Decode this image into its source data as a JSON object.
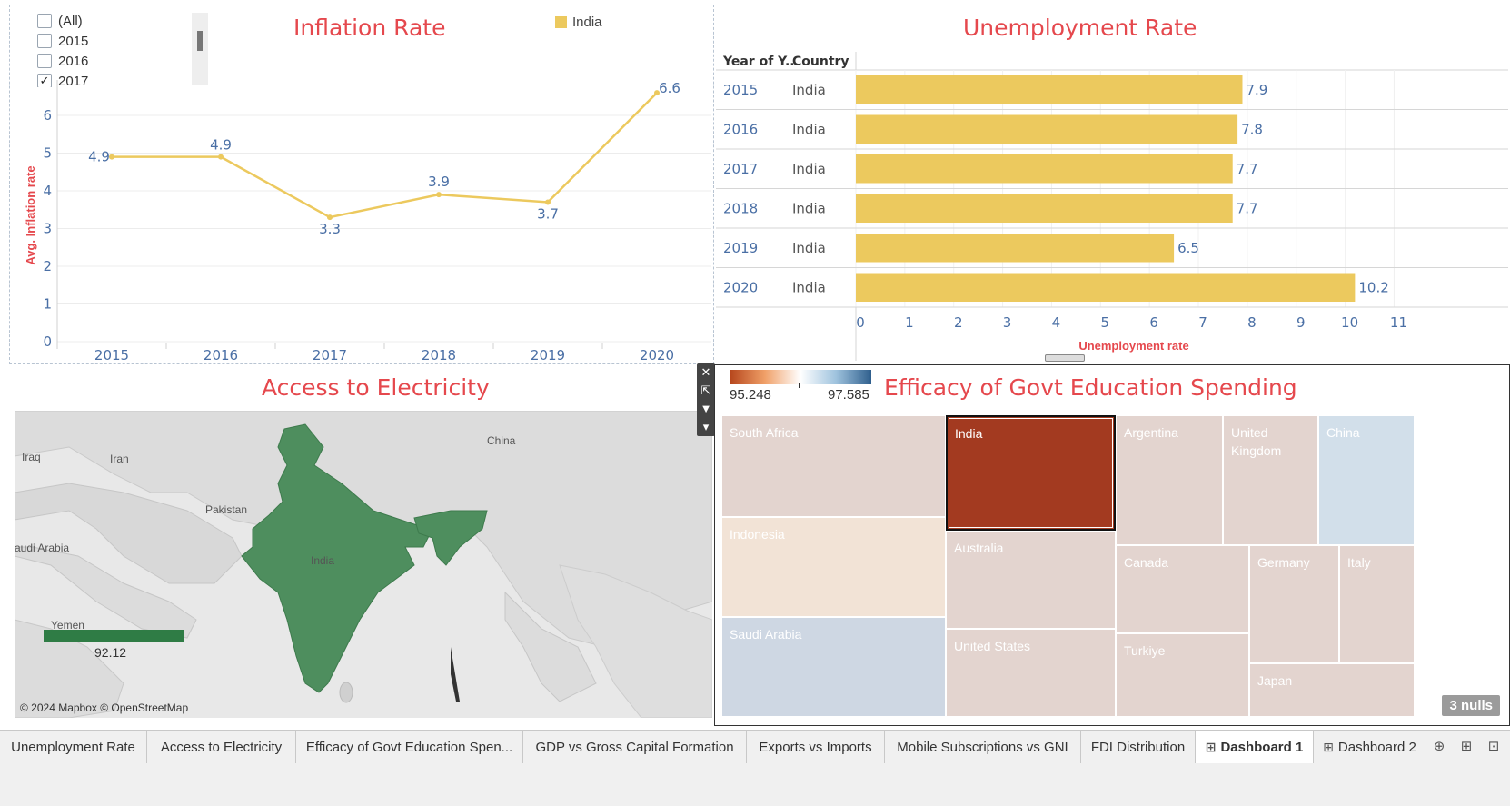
{
  "inflation": {
    "title": "Inflation Rate",
    "ylabel": "Avg. Inflation rate",
    "legend": "India",
    "year_filter": {
      "items": [
        {
          "label": "(All)",
          "checked": false
        },
        {
          "label": "2015",
          "checked": false
        },
        {
          "label": "2016",
          "checked": false
        },
        {
          "label": "2017",
          "checked": true
        }
      ]
    },
    "chart_data": {
      "type": "line",
      "x": [
        "2015",
        "2016",
        "2017",
        "2018",
        "2019",
        "2020"
      ],
      "series": [
        {
          "name": "India",
          "values": [
            4.9,
            4.9,
            3.3,
            3.9,
            3.7,
            6.6
          ],
          "color": "#ecc95e"
        }
      ],
      "yticks": [
        0,
        1,
        2,
        3,
        4,
        5,
        6
      ],
      "ylim": [
        0,
        6.7
      ],
      "ylabel": "Avg. Inflation rate",
      "title": "Inflation Rate",
      "grid": true
    }
  },
  "unemployment": {
    "title": "Unemployment Rate",
    "col_year": "Year of Y..",
    "col_country": "Country",
    "xlabel": "Unemployment rate",
    "chart_data": {
      "type": "bar",
      "rows": [
        {
          "year": "2015",
          "country": "India",
          "value": 7.9
        },
        {
          "year": "2016",
          "country": "India",
          "value": 7.8
        },
        {
          "year": "2017",
          "country": "India",
          "value": 7.7
        },
        {
          "year": "2018",
          "country": "India",
          "value": 7.7
        },
        {
          "year": "2019",
          "country": "India",
          "value": 6.5
        },
        {
          "year": "2020",
          "country": "India",
          "value": 10.2
        }
      ],
      "xticks": [
        0,
        1,
        2,
        3,
        4,
        5,
        6,
        7,
        8,
        9,
        10,
        11
      ],
      "xlim": [
        0,
        11.4
      ],
      "color": "#ecc95e",
      "xlabel": "Unemployment rate",
      "title": "Unemployment Rate"
    }
  },
  "electricity": {
    "title": "Access to Electricity",
    "legend_value": "92.12",
    "attribution": "© 2024 Mapbox © OpenStreetMap",
    "labels": {
      "iraq": "Iraq",
      "iran": "Iran",
      "pakistan": "Pakistan",
      "china": "China",
      "india": "India",
      "saudi": "audi Arabia",
      "yemen": "Yemen"
    },
    "fill_color": "#4e8e5e"
  },
  "efficacy": {
    "title": "Efficacy of Govt Education Spending",
    "legend_min": "95.248",
    "legend_max": "97.585",
    "nulls": "3 nulls",
    "tiles": [
      {
        "name": "South Africa",
        "color": "#e3d4cf"
      },
      {
        "name": "India",
        "color": "#a33a20"
      },
      {
        "name": "Argentina",
        "color": "#e3d4cf"
      },
      {
        "name": "United Kingdom",
        "color": "#e3d4cf"
      },
      {
        "name": "China",
        "color": "#d2dfea"
      },
      {
        "name": "Indonesia",
        "color": "#f2e3d6"
      },
      {
        "name": "Australia",
        "color": "#e3d4cf"
      },
      {
        "name": "Canada",
        "color": "#e3d4cf"
      },
      {
        "name": "Germany",
        "color": "#e3d4cf"
      },
      {
        "name": "Italy",
        "color": "#e3d4cf"
      },
      {
        "name": "Saudi Arabia",
        "color": "#ced7e3"
      },
      {
        "name": "United States",
        "color": "#e3d4cf"
      },
      {
        "name": "Turkiye",
        "color": "#e3d4cf"
      },
      {
        "name": "Japan",
        "color": "#e3d4cf"
      }
    ]
  },
  "tabs": [
    {
      "label": "Unemployment Rate"
    },
    {
      "label": "Access to Electricity"
    },
    {
      "label": "Efficacy of Govt Education Spen..."
    },
    {
      "label": "GDP vs Gross Capital Formation"
    },
    {
      "label": "Exports vs Imports"
    },
    {
      "label": "Mobile Subscriptions vs GNI"
    },
    {
      "label": "FDI Distribution"
    },
    {
      "label": "Dashboard 1"
    },
    {
      "label": "Dashboard 2"
    }
  ],
  "colors": {
    "accent_title": "#e5484d",
    "bar": "#ecc95e",
    "axis_text": "#4a6fa5",
    "map_fill": "#4e8e5e"
  }
}
